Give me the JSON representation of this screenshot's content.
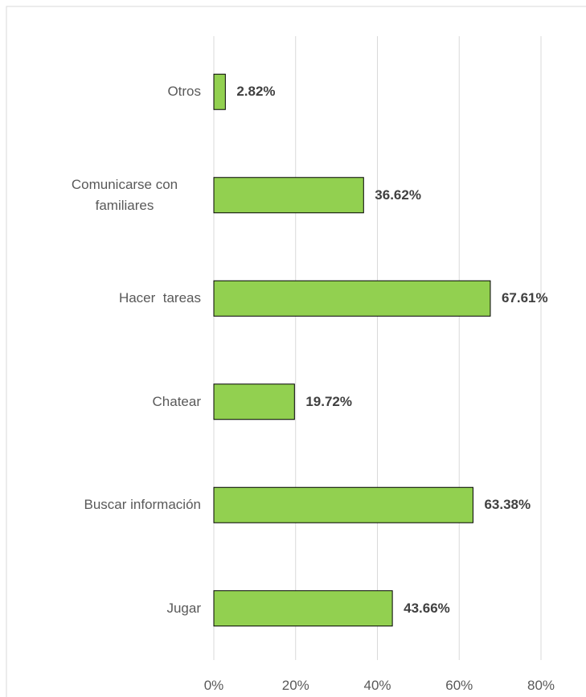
{
  "chart_data": {
    "type": "barh",
    "categories": [
      "Otros",
      "Comunicarse con familiares",
      "Hacer  tareas",
      "Chatear",
      "Buscar información",
      "Jugar"
    ],
    "values": [
      2.82,
      36.62,
      67.61,
      19.72,
      63.38,
      43.66
    ],
    "value_labels": [
      "2.82%",
      "36.62%",
      "67.61%",
      "19.72%",
      "63.38%",
      "43.66%"
    ],
    "color": "#92d050",
    "xlim": [
      0,
      80
    ],
    "xticks": [
      {
        "value": 0,
        "label": "0%"
      },
      {
        "value": 20,
        "label": "20%"
      },
      {
        "value": 40,
        "label": "40%"
      },
      {
        "value": 60,
        "label": "60%"
      },
      {
        "value": 80,
        "label": "80%"
      }
    ],
    "grid": true
  }
}
